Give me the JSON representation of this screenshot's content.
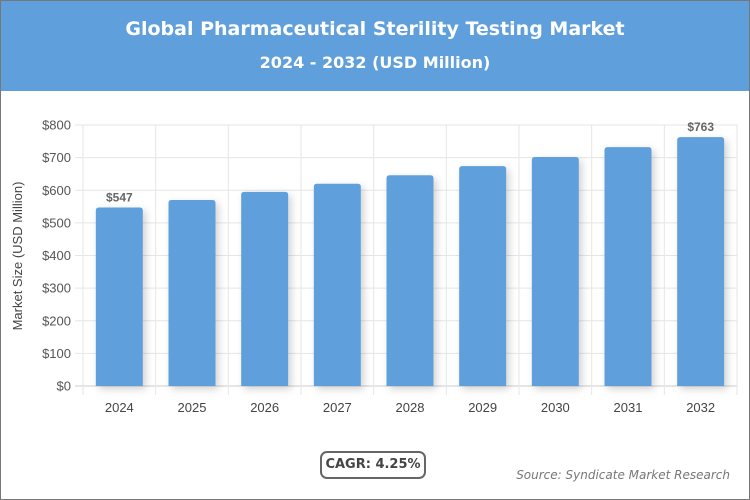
{
  "chart_data": {
    "type": "bar",
    "title": "Global Pharmaceutical Sterility Testing Market",
    "subtitle": "2024 - 2032 (USD Million)",
    "categories": [
      "2024",
      "2025",
      "2026",
      "2027",
      "2028",
      "2029",
      "2030",
      "2031",
      "2032"
    ],
    "values": [
      547,
      570,
      595,
      620,
      646,
      674,
      702,
      732,
      763
    ],
    "data_labels": {
      "0": "$547",
      "8": "$763"
    },
    "ylabel": "Market Size (USD Million)",
    "xlabel": "",
    "ylim": [
      0,
      800
    ],
    "yticks": [
      "$0",
      "$100",
      "$200",
      "$300",
      "$400",
      "$500",
      "$600",
      "$700",
      "$800"
    ],
    "grid": true,
    "bar_color": "#5f9fdc"
  },
  "cagr": "CAGR: 4.25%",
  "source": "Source: Syndicate Market Research"
}
